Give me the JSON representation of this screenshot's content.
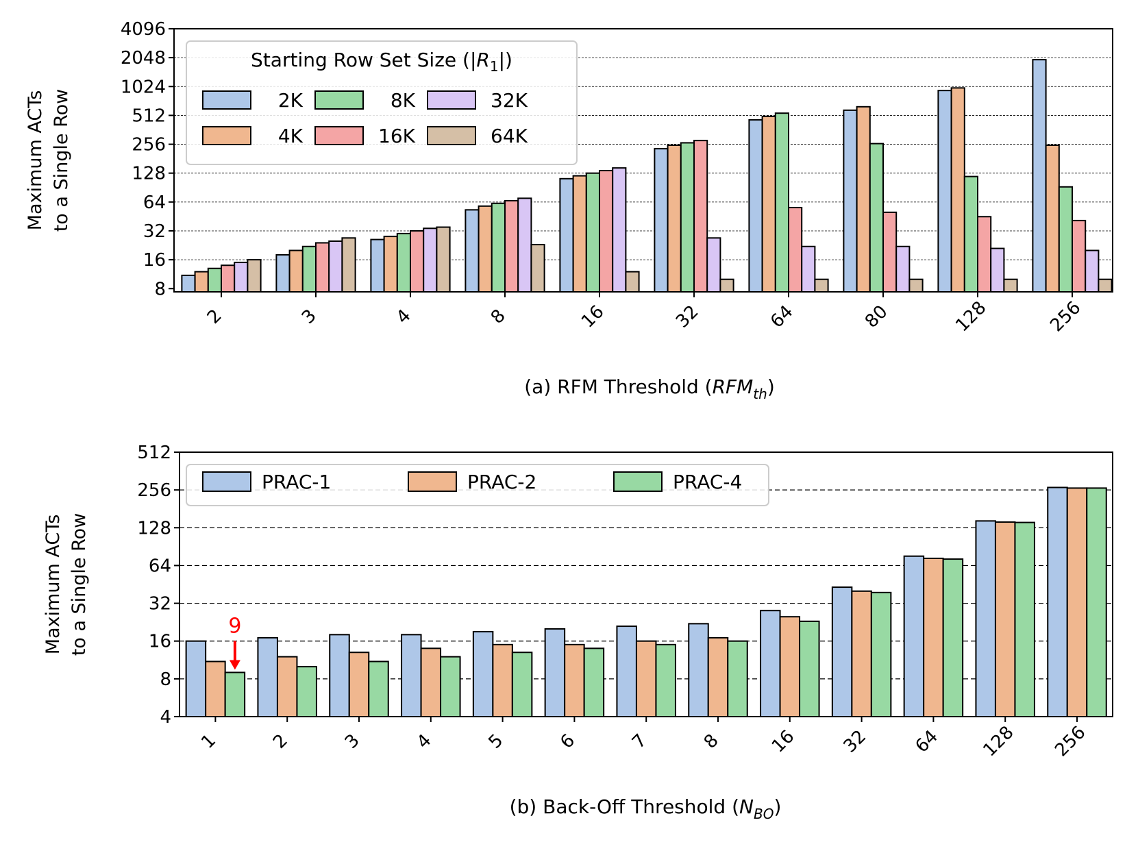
{
  "chart_data": [
    {
      "type": "bar",
      "ylabel_lines": [
        "Maximum ACTs",
        "to a Single Row"
      ],
      "xlabel_prefix": "(a) RFM Threshold (",
      "xlabel_math": "RFM",
      "xlabel_sub": "th",
      "xlabel_suffix": ")",
      "yscale": "log2",
      "ylim": [
        7.4,
        4096
      ],
      "yticks": [
        8,
        16,
        32,
        64,
        128,
        256,
        512,
        1024,
        2048,
        4096
      ],
      "ytick_labels": [
        "8",
        "16",
        "32",
        "64",
        "128",
        "256",
        "512",
        "1024",
        "2048",
        "4096"
      ],
      "grid_values": [
        16,
        32,
        64,
        128,
        256,
        512,
        1024,
        2048
      ],
      "categories": [
        "2",
        "3",
        "4",
        "8",
        "16",
        "32",
        "64",
        "80",
        "128",
        "256"
      ],
      "legend": {
        "title_prefix": "Starting Row Set Size (|",
        "title_math": "R",
        "title_sub": "1",
        "title_suffix": "|)",
        "placement": "upper-left"
      },
      "series": [
        {
          "name": "2K",
          "color": "#aec7e8",
          "values": [
            11,
            18,
            26,
            53,
            112,
            230,
            460,
            580,
            930,
            1950
          ]
        },
        {
          "name": "4K",
          "color": "#f0b78f",
          "values": [
            12,
            20,
            28,
            58,
            120,
            250,
            500,
            630,
            990,
            250
          ]
        },
        {
          "name": "8K",
          "color": "#98d9a3",
          "values": [
            13,
            22,
            30,
            62,
            128,
            265,
            540,
            260,
            118,
            92
          ]
        },
        {
          "name": "16K",
          "color": "#f4a5a5",
          "values": [
            14,
            24,
            32,
            66,
            136,
            280,
            56,
            50,
            45,
            41
          ]
        },
        {
          "name": "32K",
          "color": "#d9c6f5",
          "values": [
            15,
            25,
            34,
            70,
            145,
            27,
            22,
            22,
            21,
            20
          ]
        },
        {
          "name": "64K",
          "color": "#d5bfa6",
          "values": [
            16,
            27,
            35,
            23,
            12,
            10,
            10,
            10,
            10,
            10
          ]
        }
      ]
    },
    {
      "type": "bar",
      "ylabel_lines": [
        "Maximum ACTs",
        "to a Single Row"
      ],
      "xlabel_prefix": "(b) Back-Off Threshold (",
      "xlabel_math": "N",
      "xlabel_sub": "BO",
      "xlabel_suffix": ")",
      "yscale": "log2",
      "ylim": [
        4,
        512
      ],
      "yticks": [
        4,
        8,
        16,
        32,
        64,
        128,
        256,
        512
      ],
      "ytick_labels": [
        "4",
        "8",
        "16",
        "32",
        "64",
        "128",
        "256",
        "512"
      ],
      "grid_values": [
        8,
        16,
        32,
        64,
        128,
        256
      ],
      "categories": [
        "1",
        "2",
        "3",
        "4",
        "5",
        "6",
        "7",
        "8",
        "16",
        "32",
        "64",
        "128",
        "256"
      ],
      "legend": {
        "placement": "upper-left"
      },
      "series": [
        {
          "name": "PRAC-1",
          "color": "#aec7e8",
          "values": [
            16,
            17,
            18,
            18,
            19,
            20,
            21,
            22,
            28,
            43,
            76,
            145,
            268
          ]
        },
        {
          "name": "PRAC-2",
          "color": "#f0b78f",
          "values": [
            11,
            12,
            13,
            14,
            15,
            15,
            16,
            17,
            25,
            40,
            73,
            142,
            265
          ]
        },
        {
          "name": "PRAC-4",
          "color": "#98d9a3",
          "values": [
            9,
            10,
            11,
            12,
            13,
            14,
            15,
            16,
            23,
            39,
            72,
            141,
            265
          ]
        }
      ],
      "annotation": {
        "text": "9",
        "category": "1",
        "series": "PRAC-4",
        "value": 9,
        "color": "#ff0000"
      }
    }
  ]
}
